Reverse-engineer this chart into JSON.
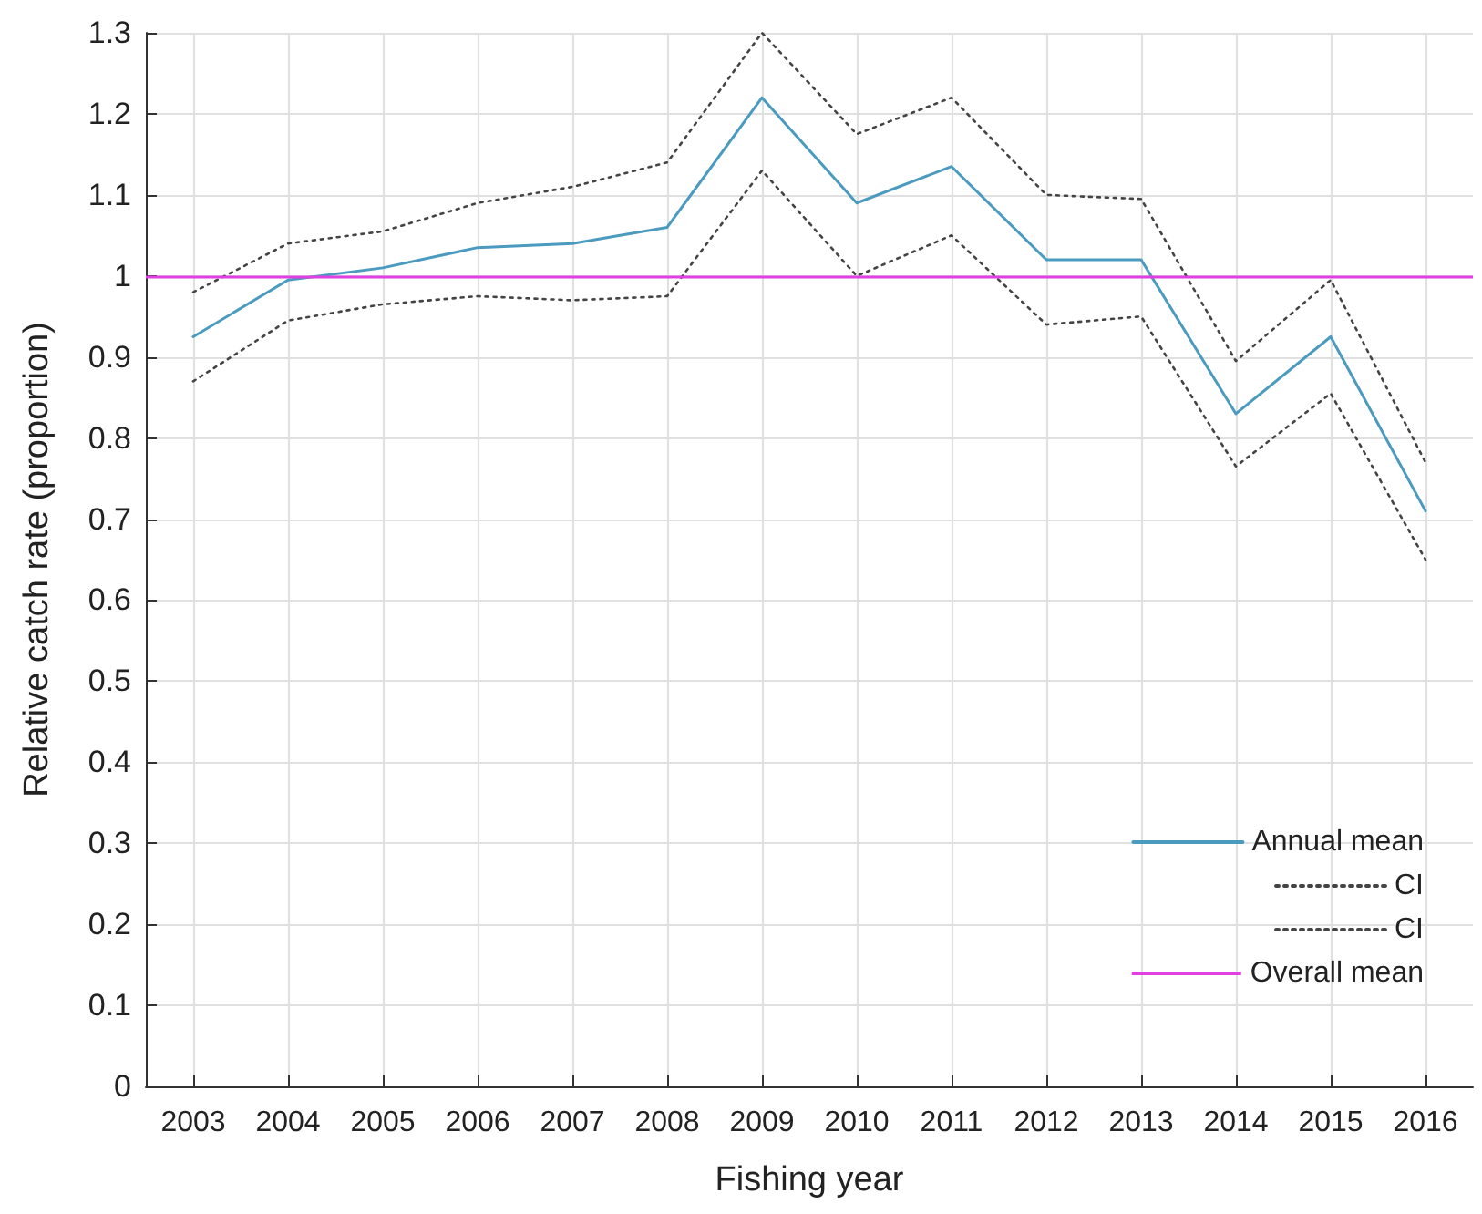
{
  "chart_data": {
    "type": "line",
    "xlabel": "Fishing year",
    "ylabel": "Relative catch rate (proportion)",
    "categories": [
      "2003",
      "2004",
      "2005",
      "2006",
      "2007",
      "2008",
      "2009",
      "2010",
      "2011",
      "2012",
      "2013",
      "2014",
      "2015",
      "2016"
    ],
    "series": [
      {
        "name": "Annual mean",
        "color": "#4a9bbf",
        "line_style": "solid",
        "values": [
          0.925,
          0.995,
          1.01,
          1.035,
          1.04,
          1.06,
          1.22,
          1.09,
          1.135,
          1.02,
          1.02,
          0.83,
          0.925,
          0.71
        ]
      },
      {
        "name": "CI",
        "color": "#444444",
        "line_style": "dotted",
        "values": [
          0.98,
          1.04,
          1.055,
          1.09,
          1.11,
          1.14,
          1.3,
          1.175,
          1.22,
          1.1,
          1.095,
          0.895,
          0.995,
          0.77
        ]
      },
      {
        "name": "CI",
        "color": "#444444",
        "line_style": "dotted",
        "values": [
          0.87,
          0.945,
          0.965,
          0.975,
          0.97,
          0.975,
          1.13,
          1.0,
          1.05,
          0.94,
          0.95,
          0.765,
          0.855,
          0.65
        ]
      }
    ],
    "ref_lines": [
      {
        "axis": "y",
        "value": 1,
        "label": "Overall mean",
        "color": "#e040e0",
        "line_style": "solid"
      }
    ],
    "ylim": [
      0,
      1.3
    ],
    "yticks": [
      0,
      0.1,
      0.2,
      0.3,
      0.4,
      0.5,
      0.6,
      0.7,
      0.8,
      0.9,
      1,
      1.1,
      1.2,
      1.3
    ],
    "grid": true,
    "legend": "bottom right",
    "marker": "none"
  }
}
